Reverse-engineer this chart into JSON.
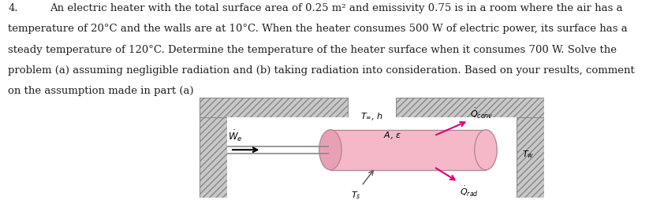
{
  "title_num": "4.",
  "line1": "An electric heater with the total surface area of 0.25 m² and emissivity 0.75 is in a room where the air has a",
  "line2": "temperature of 20°C and the walls are at 10°C. When the heater consumes 500 W of electric power, its surface has a",
  "line3": "steady temperature of 120°C. Determine the temperature of the heater surface when it consumes 700 W. Solve the",
  "line4": "problem (a) assuming negligible radiation and (b) taking radiation into consideration. Based on your results, comment",
  "line5": "on the assumption made in part (a)",
  "bg_color": "#ffffff",
  "hatch_fill": "#c8c8c8",
  "cylinder_fill": "#f5b8c8",
  "cylinder_edge": "#b88898",
  "cylinder_dark": "#e8a0b5",
  "arrow_color": "#dd0077",
  "text_color": "#222222",
  "wire_color": "#888888"
}
